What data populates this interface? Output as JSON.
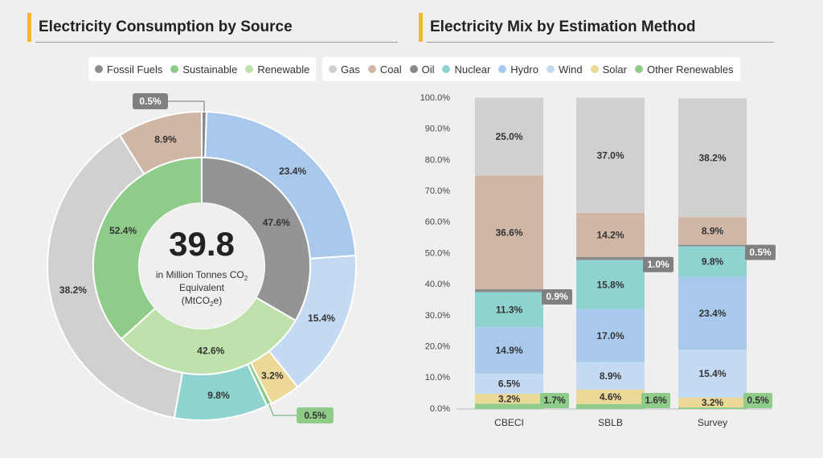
{
  "left": {
    "title": "Electricity Consumption by Source",
    "legend": [
      {
        "label": "Fossil Fuels",
        "color": "#8d8e8f"
      },
      {
        "label": "Sustainable",
        "color": "#8fcc8a"
      },
      {
        "label": "Renewable",
        "color": "#bfe2ad"
      }
    ],
    "center": {
      "value": "39.8",
      "line1": "in Million Tonnes CO",
      "line1_sub": "2",
      "line2": "Equivalent",
      "line3_pre": "(MtCO",
      "line3_sub": "2",
      "line3_post": "e)"
    }
  },
  "right": {
    "title": "Electricity Mix by Estimation Method",
    "legend": [
      {
        "label": "Gas",
        "color": "#d0d0cf"
      },
      {
        "label": "Coal",
        "color": "#cfb6a5"
      },
      {
        "label": "Oil",
        "color": "#8a8b8c"
      },
      {
        "label": "Nuclear",
        "color": "#8fd3d0"
      },
      {
        "label": "Hydro",
        "color": "#a8c8ec"
      },
      {
        "label": "Wind",
        "color": "#c4daf2"
      },
      {
        "label": "Solar",
        "color": "#ecd997"
      },
      {
        "label": "Other Renewables",
        "color": "#8fcc8a"
      }
    ]
  },
  "chart_data": [
    {
      "type": "pie",
      "title": "Electricity Consumption by Source",
      "inner_ring": [
        {
          "label": "Fossil Fuels",
          "value": 47.6,
          "text": "47.6%",
          "color": "#939495"
        },
        {
          "label": "Renewable",
          "value": 42.6,
          "text": "42.6%",
          "color": "#bfe2ad"
        },
        {
          "label": "Sustainable",
          "value": 52.4,
          "text": "52.4%",
          "color": "#8fcc8a"
        }
      ],
      "outer_ring": [
        {
          "label": "Oil",
          "value": 0.5,
          "text": "0.5%",
          "color": "#8a8b8c"
        },
        {
          "label": "Hydro",
          "value": 23.4,
          "text": "23.4%",
          "color": "#a8c8ec"
        },
        {
          "label": "Wind",
          "value": 15.4,
          "text": "15.4%",
          "color": "#c4daf2"
        },
        {
          "label": "Solar",
          "value": 3.2,
          "text": "3.2%",
          "color": "#ecd997"
        },
        {
          "label": "Other Renewables",
          "value": 0.5,
          "text": "0.5%",
          "color": "#8fcc8a"
        },
        {
          "label": "Nuclear",
          "value": 9.8,
          "text": "9.8%",
          "color": "#8fd3d0"
        },
        {
          "label": "Gas",
          "value": 38.2,
          "text": "38.2%",
          "color": "#d0d0cf"
        },
        {
          "label": "Coal",
          "value": 8.9,
          "text": "8.9%",
          "color": "#cfb6a5"
        }
      ]
    },
    {
      "type": "bar",
      "stacked": true,
      "title": "Electricity Mix by Estimation Method",
      "categories": [
        "CBECI",
        "SBLB",
        "Survey"
      ],
      "ylim": [
        0,
        100
      ],
      "yticks": [
        "0.0%",
        "10.0%",
        "20.0%",
        "30.0%",
        "40.0%",
        "50.0%",
        "60.0%",
        "70.0%",
        "80.0%",
        "90.0%",
        "100.0%"
      ],
      "grid": false,
      "series": [
        {
          "name": "Other Renewables",
          "color": "#8fcc8a",
          "values": [
            1.7,
            1.6,
            0.5
          ],
          "labels": [
            "1.7%",
            "1.6%",
            "0.5%"
          ]
        },
        {
          "name": "Solar",
          "color": "#ecd997",
          "values": [
            3.2,
            4.6,
            3.2
          ],
          "labels": [
            "3.2%",
            "4.6%",
            "3.2%"
          ]
        },
        {
          "name": "Wind",
          "color": "#c4daf2",
          "values": [
            6.5,
            8.9,
            15.4
          ],
          "labels": [
            "6.5%",
            "8.9%",
            "15.4%"
          ]
        },
        {
          "name": "Hydro",
          "color": "#a8c8ec",
          "values": [
            14.9,
            17.0,
            23.4
          ],
          "labels": [
            "14.9%",
            "17.0%",
            "23.4%"
          ]
        },
        {
          "name": "Nuclear",
          "color": "#8fd3d0",
          "values": [
            11.3,
            15.8,
            9.8
          ],
          "labels": [
            "11.3%",
            "15.8%",
            "9.8%"
          ]
        },
        {
          "name": "Oil",
          "color": "#8a8b8c",
          "values": [
            0.9,
            1.0,
            0.5
          ],
          "labels": [
            "0.9%",
            "1.0%",
            "0.5%"
          ]
        },
        {
          "name": "Coal",
          "color": "#cfb6a5",
          "values": [
            36.6,
            14.2,
            8.9
          ],
          "labels": [
            "36.6%",
            "14.2%",
            "8.9%"
          ]
        },
        {
          "name": "Gas",
          "color": "#d0d0cf",
          "values": [
            25.0,
            37.0,
            38.2
          ],
          "labels": [
            "25.0%",
            "37.0%",
            "38.2%"
          ]
        }
      ]
    }
  ]
}
